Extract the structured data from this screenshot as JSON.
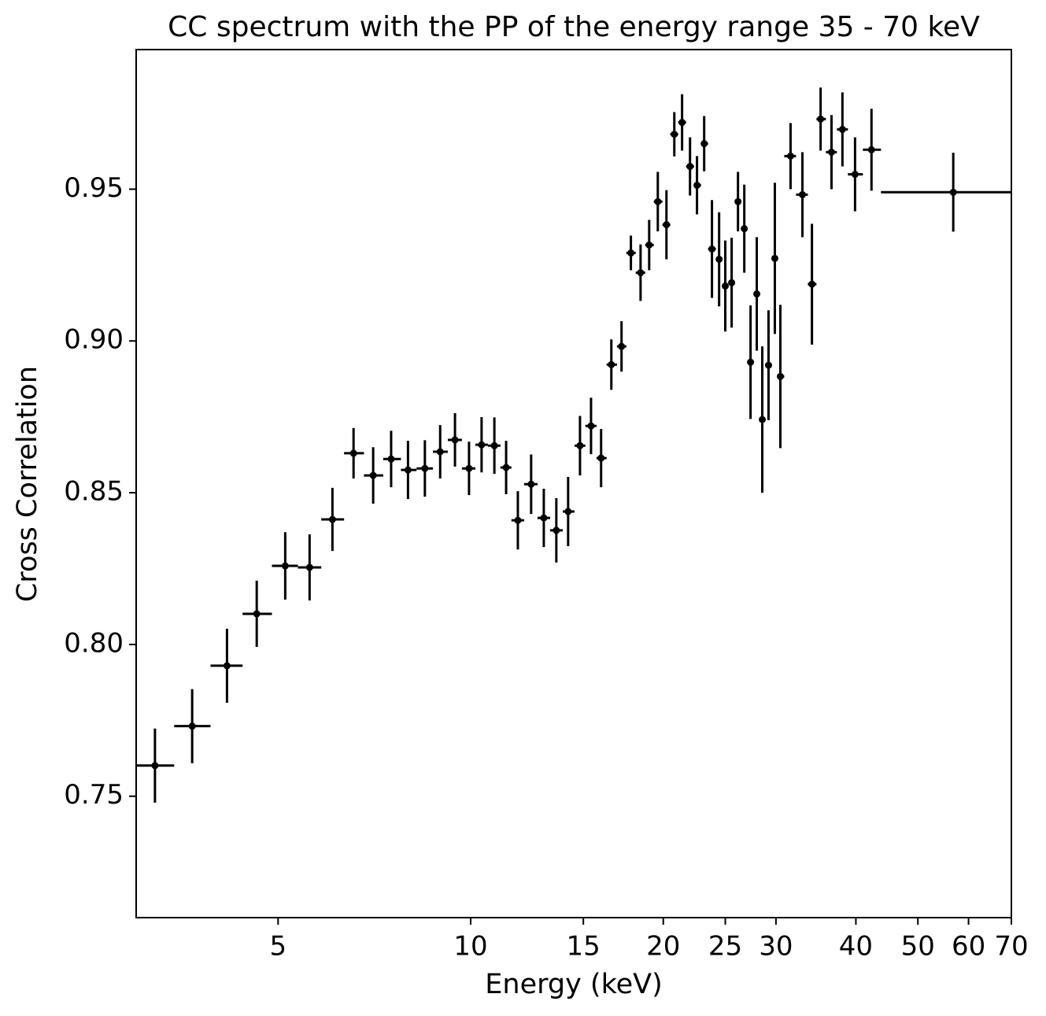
{
  "chart_data": {
    "type": "errorbar",
    "title": "CC spectrum with the PP of the energy range 35 - 70 keV",
    "x_label": "Energy (keV)",
    "y_label": "Cross Correlation",
    "xscale": "log",
    "xlim": [
      3.0,
      70
    ],
    "ylim": [
      0.71,
      0.996
    ],
    "xticks": [
      5,
      10,
      15,
      20,
      25,
      30,
      40,
      50,
      60,
      70
    ],
    "yticks": [
      0.75,
      {
        "value": 0.8,
        "label": "0.80"
      },
      0.85,
      {
        "value": 0.9,
        "label": "0.90"
      },
      0.95
    ],
    "grid": false,
    "series": [
      {
        "color": "#000000",
        "x": [
          3.21,
          3.67,
          4.16,
          4.63,
          5.13,
          5.6,
          6.08,
          6.56,
          7.04,
          7.51,
          7.98,
          8.48,
          8.96,
          9.45,
          9.94,
          10.4,
          10.89,
          11.36,
          11.85,
          12.43,
          13.01,
          13.61,
          14.2,
          14.82,
          15.42,
          15.99,
          16.59,
          17.21,
          17.8,
          18.43,
          19.01,
          19.61,
          20.23,
          20.81,
          21.4,
          22.02,
          22.58,
          23.17,
          23.83,
          24.45,
          25.0,
          25.58,
          26.17,
          26.77,
          27.38,
          28.0,
          28.56,
          29.21,
          29.88,
          30.48,
          31.62,
          33.0,
          34.15,
          35.23,
          36.64,
          38.11,
          39.88,
          42.31,
          56.79
        ],
        "y": [
          0.7601,
          0.7731,
          0.793,
          0.8101,
          0.8259,
          0.8254,
          0.8412,
          0.863,
          0.8557,
          0.8611,
          0.8575,
          0.858,
          0.8635,
          0.8674,
          0.858,
          0.8658,
          0.8655,
          0.8583,
          0.8409,
          0.8528,
          0.8417,
          0.8376,
          0.8438,
          0.8655,
          0.872,
          0.8614,
          0.8922,
          0.8982,
          0.929,
          0.9225,
          0.9316,
          0.9459,
          0.9383,
          0.9681,
          0.972,
          0.9575,
          0.9513,
          0.965,
          0.9303,
          0.9269,
          0.9181,
          0.9192,
          0.9459,
          0.937,
          0.893,
          0.9155,
          0.8741,
          0.892,
          0.9272,
          0.8883,
          0.9609,
          0.9482,
          0.9187,
          0.9731,
          0.9622,
          0.9697,
          0.9549,
          0.963,
          0.949
        ],
        "yerr": [
          0.0122,
          0.0122,
          0.0122,
          0.0109,
          0.0111,
          0.0109,
          0.0104,
          0.0083,
          0.0093,
          0.0093,
          0.0096,
          0.0093,
          0.0088,
          0.0088,
          0.0088,
          0.0091,
          0.0093,
          0.0088,
          0.0096,
          0.0098,
          0.0096,
          0.0106,
          0.0114,
          0.0098,
          0.0093,
          0.0096,
          0.0083,
          0.0083,
          0.0057,
          0.0093,
          0.0083,
          0.0098,
          0.0114,
          0.0073,
          0.0093,
          0.0096,
          0.0096,
          0.0091,
          0.0161,
          0.0155,
          0.015,
          0.0148,
          0.0098,
          0.0145,
          0.0187,
          0.0187,
          0.0241,
          0.0181,
          0.0249,
          0.0236,
          0.0109,
          0.014,
          0.0199,
          0.0104,
          0.0122,
          0.0122,
          0.0122,
          0.0135,
          0.013
        ],
        "x_edges": [
          3.0,
          3.44,
          3.92,
          4.4,
          4.89,
          5.37,
          5.84,
          6.34,
          6.81,
          7.3,
          7.78,
          8.23,
          8.73,
          9.21,
          9.69,
          10.17,
          10.64,
          11.13,
          11.58,
          12.12,
          12.72,
          13.31,
          13.93,
          14.53,
          15.11,
          15.73,
          16.31,
          16.93,
          17.51,
          18.11,
          18.74,
          19.33,
          19.94,
          20.51,
          21.1,
          21.71,
          22.34,
          22.91,
          23.5,
          24.17,
          24.72,
          25.28,
          25.86,
          26.45,
          27.06,
          27.68,
          28.32,
          28.88,
          29.54,
          30.22,
          30.91,
          32.25,
          33.65,
          34.71,
          35.91,
          37.36,
          38.87,
          41.02,
          43.78,
          70
        ]
      }
    ]
  }
}
